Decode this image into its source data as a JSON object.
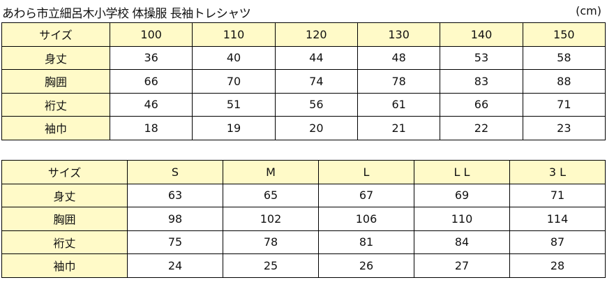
{
  "title": "あわら市立細呂木小学校 体操服 長袖トレシャツ",
  "unit": "(cm)",
  "table1": {
    "header": [
      "サイズ",
      "100",
      "110",
      "120",
      "130",
      "140",
      "150"
    ],
    "rows": [
      [
        "身丈",
        "36",
        "40",
        "44",
        "48",
        "53",
        "58"
      ],
      [
        "胸囲",
        "66",
        "70",
        "74",
        "78",
        "83",
        "88"
      ],
      [
        "裄丈",
        "46",
        "51",
        "56",
        "61",
        "66",
        "71"
      ],
      [
        "袖巾",
        "18",
        "19",
        "20",
        "21",
        "22",
        "23"
      ]
    ]
  },
  "table2": {
    "header": [
      "サイズ",
      "S",
      "M",
      "L",
      "L L",
      "3 L"
    ],
    "rows": [
      [
        "身丈",
        "63",
        "65",
        "67",
        "69",
        "71"
      ],
      [
        "胸囲",
        "98",
        "102",
        "106",
        "110",
        "114"
      ],
      [
        "裄丈",
        "75",
        "78",
        "81",
        "84",
        "87"
      ],
      [
        "袖巾",
        "24",
        "25",
        "26",
        "27",
        "28"
      ]
    ]
  },
  "colors": {
    "header_fill": "#fffac8",
    "border": "#000000"
  }
}
